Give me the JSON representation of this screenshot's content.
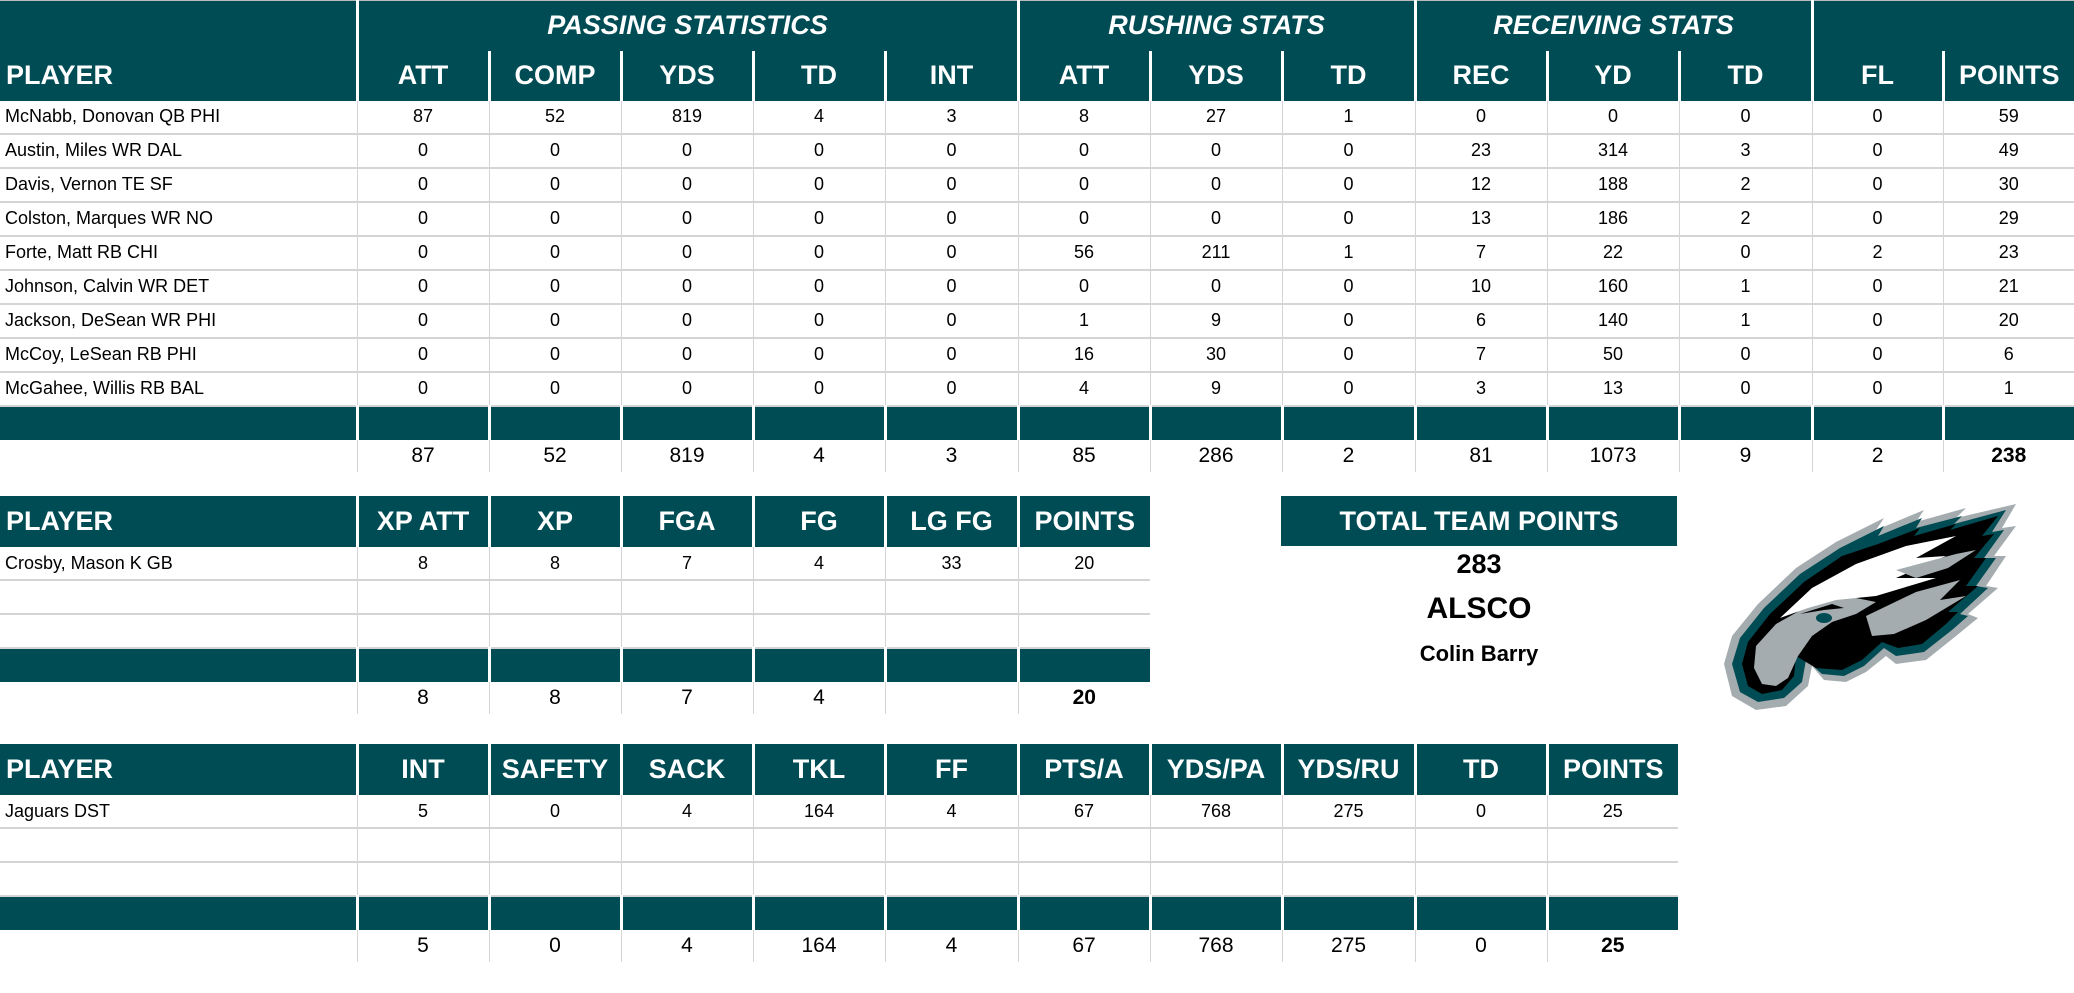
{
  "colors": {
    "header_bg": "#004C54",
    "header_text": "#FFFFFF",
    "grid": "#D4D4D4"
  },
  "offense": {
    "groups": [
      {
        "label": "",
        "span": 1
      },
      {
        "label": "PASSING STATISTICS",
        "span": 5
      },
      {
        "label": "RUSHING STATS",
        "span": 3
      },
      {
        "label": "RECEIVING STATS",
        "span": 3
      },
      {
        "label": "",
        "span": 2
      }
    ],
    "columns": [
      "PLAYER",
      "ATT",
      "COMP",
      "YDS",
      "TD",
      "INT",
      "ATT",
      "YDS",
      "TD",
      "REC",
      "YD",
      "TD",
      "FL",
      "POINTS"
    ],
    "rows": [
      [
        "McNabb, Donovan QB PHI",
        "87",
        "52",
        "819",
        "4",
        "3",
        "8",
        "27",
        "1",
        "0",
        "0",
        "0",
        "0",
        "59"
      ],
      [
        "Austin, Miles WR DAL",
        "0",
        "0",
        "0",
        "0",
        "0",
        "0",
        "0",
        "0",
        "23",
        "314",
        "3",
        "0",
        "49"
      ],
      [
        "Davis, Vernon TE SF",
        "0",
        "0",
        "0",
        "0",
        "0",
        "0",
        "0",
        "0",
        "12",
        "188",
        "2",
        "0",
        "30"
      ],
      [
        "Colston, Marques WR NO",
        "0",
        "0",
        "0",
        "0",
        "0",
        "0",
        "0",
        "0",
        "13",
        "186",
        "2",
        "0",
        "29"
      ],
      [
        "Forte, Matt RB CHI",
        "0",
        "0",
        "0",
        "0",
        "0",
        "56",
        "211",
        "1",
        "7",
        "22",
        "0",
        "2",
        "23"
      ],
      [
        "Johnson, Calvin WR DET",
        "0",
        "0",
        "0",
        "0",
        "0",
        "0",
        "0",
        "0",
        "10",
        "160",
        "1",
        "0",
        "21"
      ],
      [
        "Jackson, DeSean WR PHI",
        "0",
        "0",
        "0",
        "0",
        "0",
        "1",
        "9",
        "0",
        "6",
        "140",
        "1",
        "0",
        "20"
      ],
      [
        "McCoy, LeSean RB PHI",
        "0",
        "0",
        "0",
        "0",
        "0",
        "16",
        "30",
        "0",
        "7",
        "50",
        "0",
        "0",
        "6"
      ],
      [
        "McGahee, Willis RB BAL",
        "0",
        "0",
        "0",
        "0",
        "0",
        "4",
        "9",
        "0",
        "3",
        "13",
        "0",
        "0",
        "1"
      ]
    ],
    "totals": [
      "",
      "87",
      "52",
      "819",
      "4",
      "3",
      "85",
      "286",
      "2",
      "81",
      "1073",
      "9",
      "2",
      "238"
    ]
  },
  "kicker": {
    "columns": [
      "PLAYER",
      "XP ATT",
      "XP",
      "FGA",
      "FG",
      "LG FG",
      "POINTS"
    ],
    "rows": [
      [
        "Crosby, Mason K GB",
        "8",
        "8",
        "7",
        "4",
        "33",
        "20"
      ],
      [
        "",
        "",
        "",
        "",
        "",
        "",
        ""
      ],
      [
        "",
        "",
        "",
        "",
        "",
        "",
        ""
      ]
    ],
    "totals": [
      "",
      "8",
      "8",
      "7",
      "4",
      "",
      "20"
    ]
  },
  "defense": {
    "columns": [
      "PLAYER",
      "INT",
      "SAFETY",
      "SACK",
      "TKL",
      "FF",
      "PTS/A",
      "YDS/PA",
      "YDS/RU",
      "TD",
      "POINTS"
    ],
    "rows": [
      [
        "Jaguars DST",
        "5",
        "0",
        "4",
        "164",
        "4",
        "67",
        "768",
        "275",
        "0",
        "25"
      ],
      [
        "",
        "",
        "",
        "",
        "",
        "",
        "",
        "",
        "",
        "",
        ""
      ],
      [
        "",
        "",
        "",
        "",
        "",
        "",
        "",
        "",
        "",
        "",
        ""
      ]
    ],
    "totals": [
      "",
      "5",
      "0",
      "4",
      "164",
      "4",
      "67",
      "768",
      "275",
      "0",
      "25"
    ]
  },
  "summary": {
    "title": "TOTAL TEAM POINTS",
    "total_points": "283",
    "team_name": "ALSCO",
    "owner": "Colin Barry",
    "logo_icon": "eagles-logo-icon"
  }
}
